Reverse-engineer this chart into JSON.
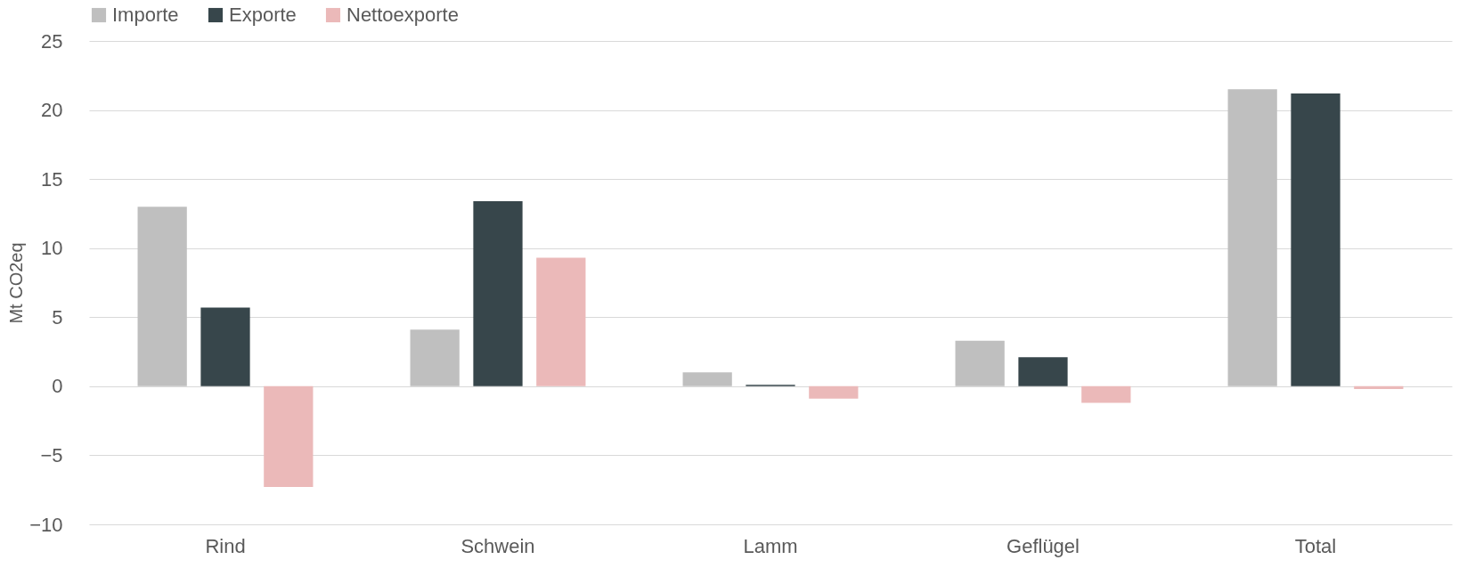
{
  "chart_data": {
    "type": "bar",
    "ylabel": "Mt CO2eq",
    "categories": [
      "Rind",
      "Schwein",
      "Lamm",
      "Geflügel",
      "Total"
    ],
    "series": [
      {
        "name": "Importe",
        "color": "#bfbfbf",
        "values": [
          13.0,
          4.1,
          1.0,
          3.3,
          21.5
        ]
      },
      {
        "name": "Exporte",
        "color": "#37464b",
        "values": [
          5.7,
          13.4,
          0.1,
          2.1,
          21.2
        ]
      },
      {
        "name": "Nettoexporte",
        "color": "#ebb9b9",
        "values": [
          -7.3,
          9.3,
          -0.9,
          -1.2,
          -0.2
        ]
      }
    ],
    "ylim": [
      -10,
      25
    ],
    "yticks": [
      -10,
      -5,
      0,
      5,
      10,
      15,
      20,
      25
    ],
    "grid": "y",
    "legend": "top"
  }
}
